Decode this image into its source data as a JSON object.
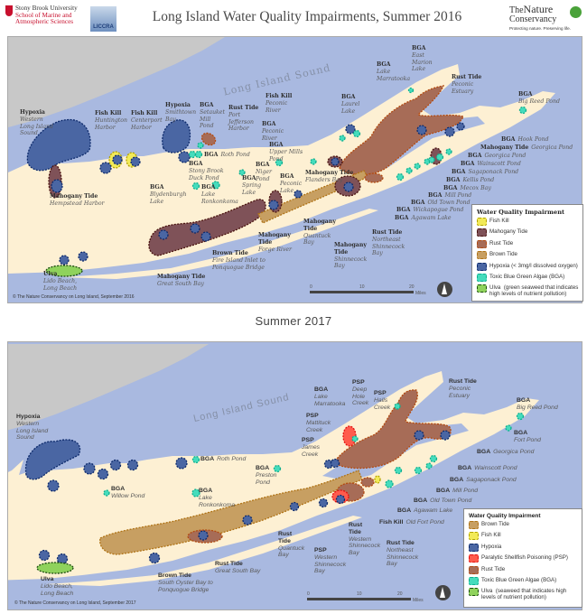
{
  "header": {
    "title": "Long Island Water Quality Impairments, Summer 2016",
    "sbu_line1": "Stony Brook University",
    "sbu_line2": "School of Marine and",
    "sbu_line3": "Atmospheric Sciences",
    "liccra": "LICCRA",
    "tnc_the": "The",
    "tnc_nature": "Nature",
    "tnc_conservancy": "Conservancy",
    "tnc_tagline": "Protecting nature. Preserving life."
  },
  "colors": {
    "water": "#a9b9e0",
    "land": "#fdf0d3",
    "mainland": "#c8c8c8",
    "hypoxia": "#4a66a3",
    "mahogany_tide": "#7f5258",
    "rust_tide": "#a76c57",
    "brown_tide": "#c79f62",
    "fish_kill": "#f2ea58",
    "bga": "#45dcbc",
    "ulva": "#8fd25c",
    "psp": "#ff5b4c"
  },
  "map2016": {
    "water_label": "Long Island Sound",
    "copyright": "© The Nature Conservancy on Long Island, September 2016",
    "scale": {
      "t0": "0",
      "t10": "10",
      "t20": "20",
      "unit": "Miles"
    },
    "legend": {
      "title": "Water Quality Impairment",
      "items": [
        {
          "label": "Fish Kill",
          "key": "fk"
        },
        {
          "label": "Mahogany Tide",
          "key": "mah"
        },
        {
          "label": "Rust Tide",
          "key": "rust"
        },
        {
          "label": "Brown Tide",
          "key": "brown"
        },
        {
          "label": "Hypoxia (< 3mg/l dissolved oxygen)",
          "key": "hyp"
        },
        {
          "label": "Toxic Blue Green Algae (BGA)",
          "key": "bga"
        },
        {
          "label": "Ulva  (green seaweed that indicates\nhigh levels of nutrient pollution)",
          "key": "ulva"
        }
      ]
    },
    "labels": [
      {
        "type": "Hypoxia",
        "place": "Western\nLong Island\nSound"
      },
      {
        "type": "Fish Kill",
        "place": "Huntington\nHarbor"
      },
      {
        "type": "Fish Kill",
        "place": "Centerport\nHarbor"
      },
      {
        "type": "Hypoxia",
        "place": "Smithtown\nBay"
      },
      {
        "type": "BGA",
        "place": "Setauket\nMill\nPond"
      },
      {
        "type": "Rust Tide",
        "place": "Port\nJefferson\nHarbor"
      },
      {
        "type": "Fish Kill",
        "place": "Peconic\nRiver"
      },
      {
        "type": "BGA",
        "place": "Peconic\nRiver"
      },
      {
        "type": "BGA",
        "place": "Upper Mills\nPond"
      },
      {
        "type": "BGA",
        "place": "Niger\nPond"
      },
      {
        "type": "BGA",
        "place": "Peconic\nLake"
      },
      {
        "type": "Mahogany Tide",
        "place": "Flanders Bay"
      },
      {
        "type": "BGA",
        "place": "Laurel\nLake"
      },
      {
        "type": "BGA",
        "place": "Lake\nMarratooka"
      },
      {
        "type": "BGA",
        "place": "East\nMarion\nLake"
      },
      {
        "type": "Rust Tide",
        "place": "Peconic\nEstuary"
      },
      {
        "type": "BGA",
        "place": "Big Reed Pond"
      },
      {
        "type": "BGA",
        "place": "Roth Pond"
      },
      {
        "type": "BGA",
        "place": "Stony Brook\nDuck Pond"
      },
      {
        "type": "BGA",
        "place": "Blydenburgh\nLake"
      },
      {
        "type": "BGA",
        "place": "Lake\nRonkonkoma"
      },
      {
        "type": "BGA",
        "place": "Spring\nLake"
      },
      {
        "type": "Mahogany Tide",
        "place": "Hempstead Harbor"
      },
      {
        "type": "BGA",
        "place": "Hook Pond"
      },
      {
        "type": "Mahogany Tide",
        "place": "Georgica Pond"
      },
      {
        "type": "BGA",
        "place": "Georgica Pond"
      },
      {
        "type": "BGA",
        "place": "Wainscott Pond"
      },
      {
        "type": "BGA",
        "place": "Sagaponack Pond"
      },
      {
        "type": "BGA",
        "place": "Kellis Pond"
      },
      {
        "type": "BGA",
        "place": "Mecox Bay"
      },
      {
        "type": "BGA",
        "place": "Mill Pond"
      },
      {
        "type": "BGA",
        "place": "Old Town Pond"
      },
      {
        "type": "BGA",
        "place": "Wickapogue Pond"
      },
      {
        "type": "BGA",
        "place": "Agawam Lake"
      },
      {
        "type": "Mahogany\nTide",
        "place": "Quantuck\nBay"
      },
      {
        "type": "Mahogany\nTide",
        "place": "Forge River"
      },
      {
        "type": "Mahogany\nTide",
        "place": "Shinnecock\nBay"
      },
      {
        "type": "Rust Tide",
        "place": "Northeast\nShinnecock\nBay"
      },
      {
        "type": "Brown Tide",
        "place": "Fire Island Inlet to\nPonquogue Bridge"
      },
      {
        "type": "Mahogany Tide",
        "place": "Great South Bay"
      },
      {
        "type": "Ulva",
        "place": "Lido Beach,\nLong Beach"
      }
    ]
  },
  "map2017": {
    "title": "Summer 2017",
    "water_label": "Long Island Sound",
    "copyright": "© The Nature Conservancy on Long Island, September 2017",
    "scale": {
      "t0": "0",
      "t10": "10",
      "t20": "20",
      "unit": "Miles"
    },
    "legend": {
      "title": "Water Quality Impairment",
      "items": [
        {
          "label": "Brown Tide",
          "key": "brown"
        },
        {
          "label": "Fish Kill",
          "key": "fk"
        },
        {
          "label": "Hypoxia",
          "key": "hyp"
        },
        {
          "label": "Paralytic Shellfish Poisoning (PSP)",
          "key": "psp"
        },
        {
          "label": "Rust Tide",
          "key": "rust"
        },
        {
          "label": "Toxic Blue Green Algae (BGA)",
          "key": "bga"
        },
        {
          "label": "Ulva  (seaweed that indicates high\nlevels of nutrient pollution)",
          "key": "ulva"
        }
      ]
    },
    "labels": [
      {
        "type": "Hypoxia",
        "place": "Western\nLong Island\nSound"
      },
      {
        "type": "BGA",
        "place": "Roth Pond"
      },
      {
        "type": "BGA",
        "place": "Willow Pond"
      },
      {
        "type": "BGA",
        "place": "Preston\nPond"
      },
      {
        "type": "BGA",
        "place": "Lake\nRonkonkoma"
      },
      {
        "type": "BGA",
        "place": "Lake\nMarratooka"
      },
      {
        "type": "PSP",
        "place": "Deep\nHole\nCreek"
      },
      {
        "type": "PSP",
        "place": "Halls\nCreek"
      },
      {
        "type": "PSP",
        "place": "Mattituck\nCreek"
      },
      {
        "type": "PSP",
        "place": "James\nCreek"
      },
      {
        "type": "Rust Tide",
        "place": "Peconic\nEstuary"
      },
      {
        "type": "BGA",
        "place": "Big Reed Pond"
      },
      {
        "type": "BGA",
        "place": "Fort Pond"
      },
      {
        "type": "BGA",
        "place": "Georgica Pond"
      },
      {
        "type": "BGA",
        "place": "Wainscott Pond"
      },
      {
        "type": "BGA",
        "place": "Sagaponack Pond"
      },
      {
        "type": "BGA",
        "place": "Mill Pond"
      },
      {
        "type": "BGA",
        "place": "Old Town Pond"
      },
      {
        "type": "BGA",
        "place": "Agawam Lake"
      },
      {
        "type": "Fish Kill",
        "place": "Old Fort Pond"
      },
      {
        "type": "Rust\nTide",
        "place": "Quantuck\nBay"
      },
      {
        "type": "PSP",
        "place": "Western\nShinnecock\nBay"
      },
      {
        "type": "Rust\nTide",
        "place": "Western\nShinnecock\nBay"
      },
      {
        "type": "Rust Tide",
        "place": "Northeast\nShinnecock\nBay"
      },
      {
        "type": "Brown Tide",
        "place": "South Oyster Bay to\nPonquogue Bridge"
      },
      {
        "type": "Rust Tide",
        "place": "Great South Bay"
      },
      {
        "type": "Ulva",
        "place": "Lido Beach,\nLong Beach"
      }
    ]
  }
}
